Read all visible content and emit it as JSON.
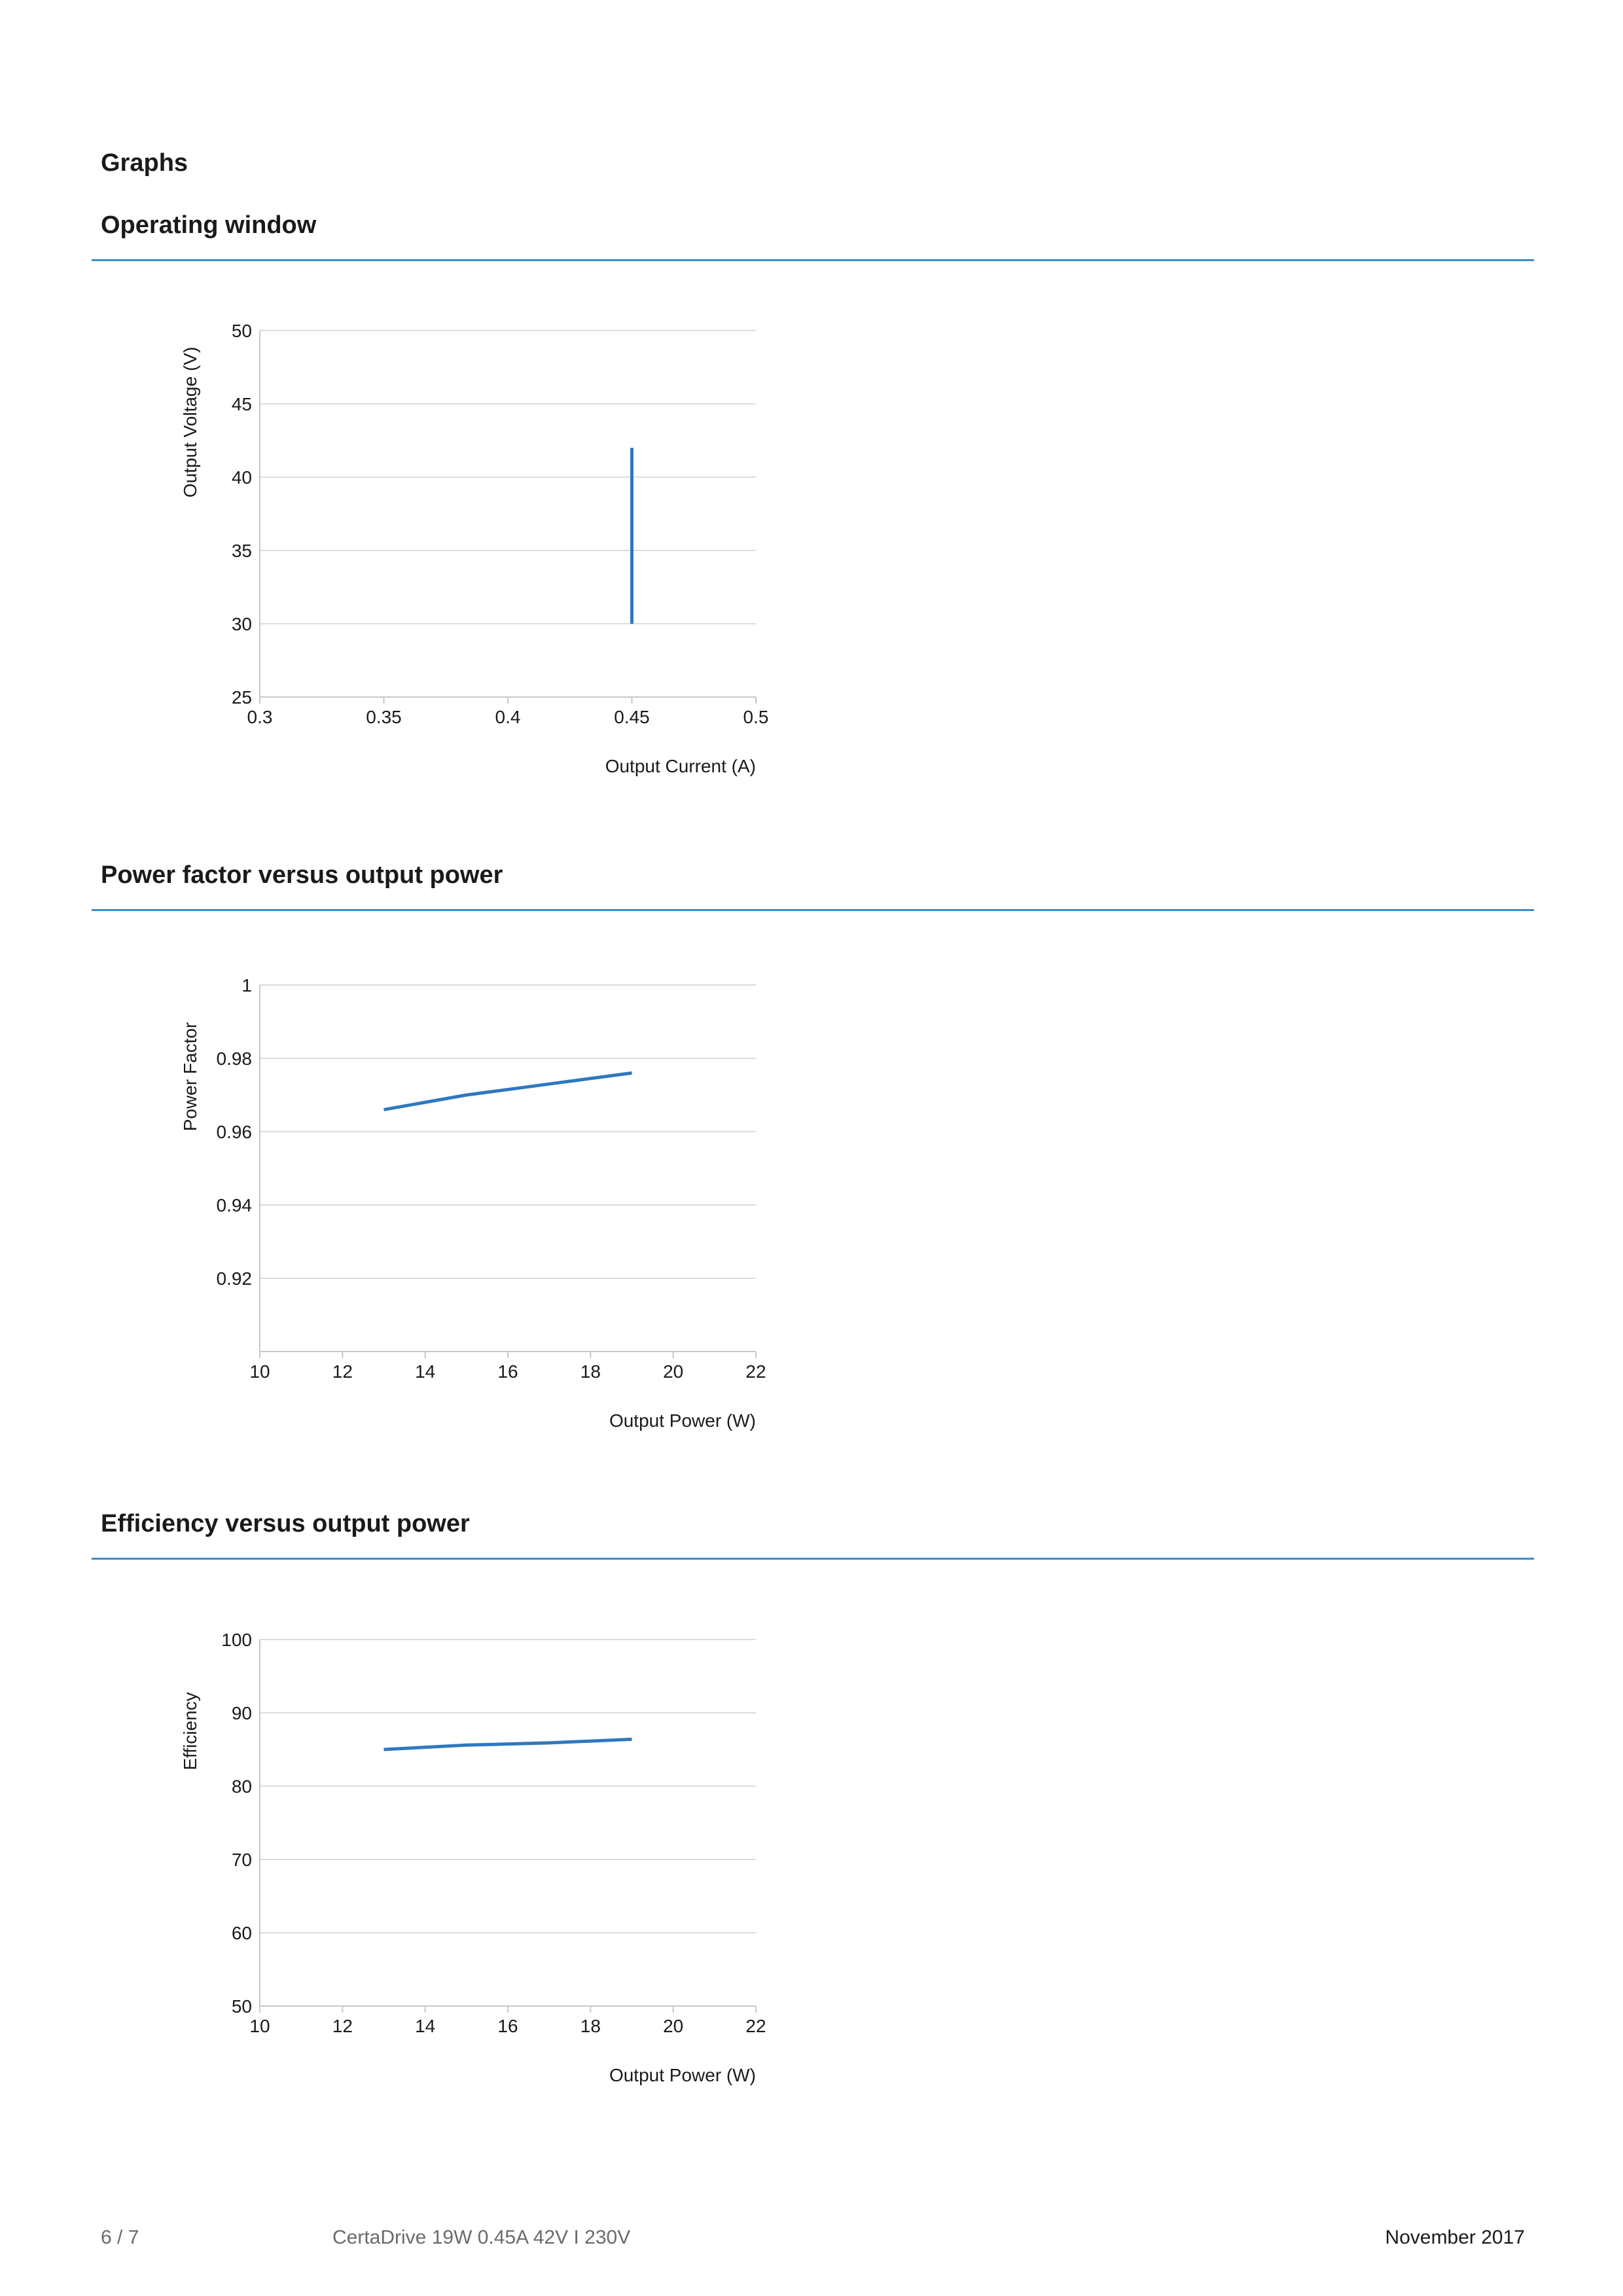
{
  "page": {
    "heading": "Graphs"
  },
  "sections": [
    {
      "title": "Operating window"
    },
    {
      "title": "Power factor versus output power"
    },
    {
      "title": "Efficiency versus output power"
    }
  ],
  "footer": {
    "page_number": "6 / 7",
    "product": "CertaDrive 19W 0.45A 42V I 230V",
    "date": "November 2017"
  },
  "colors": {
    "accent_rule": "#3d8bc7",
    "series_line": "#2f78be",
    "grid": "#dcdcdc"
  },
  "chart_data": [
    {
      "type": "line",
      "title": "Operating window",
      "xlabel": "Output Current (A)",
      "ylabel": "Output Voltage (V)",
      "xlim": [
        0.3,
        0.5
      ],
      "ylim": [
        25,
        50
      ],
      "xticks": [
        "0.3",
        "0.35",
        "0.4",
        "0.45",
        "0.5"
      ],
      "yticks": [
        "25",
        "30",
        "35",
        "40",
        "45",
        "50"
      ],
      "grid": true,
      "series": [
        {
          "x": [
            0.45,
            0.45
          ],
          "y": [
            30,
            42
          ]
        }
      ]
    },
    {
      "type": "line",
      "title": "Power factor versus output power",
      "xlabel": "Output Power (W)",
      "ylabel": "Power Factor",
      "xlim": [
        10,
        22
      ],
      "ylim": [
        0.9,
        1
      ],
      "xticks": [
        "10",
        "12",
        "14",
        "16",
        "18",
        "20",
        "22"
      ],
      "yticks": [
        "",
        "0.92",
        "0.94",
        "0.96",
        "0.98",
        "1"
      ],
      "grid": true,
      "series": [
        {
          "x": [
            13,
            15,
            17,
            19
          ],
          "y": [
            0.966,
            0.97,
            0.973,
            0.976
          ]
        }
      ]
    },
    {
      "type": "line",
      "title": "Efficiency versus output power",
      "xlabel": "Output Power (W)",
      "ylabel": "Efficiency",
      "xlim": [
        10,
        22
      ],
      "ylim": [
        50,
        100
      ],
      "xticks": [
        "10",
        "12",
        "14",
        "16",
        "18",
        "20",
        "22"
      ],
      "yticks": [
        "50",
        "60",
        "70",
        "80",
        "90",
        "100"
      ],
      "grid": true,
      "series": [
        {
          "x": [
            13,
            15,
            17,
            19
          ],
          "y": [
            85.0,
            85.6,
            85.9,
            86.4
          ]
        }
      ]
    }
  ]
}
